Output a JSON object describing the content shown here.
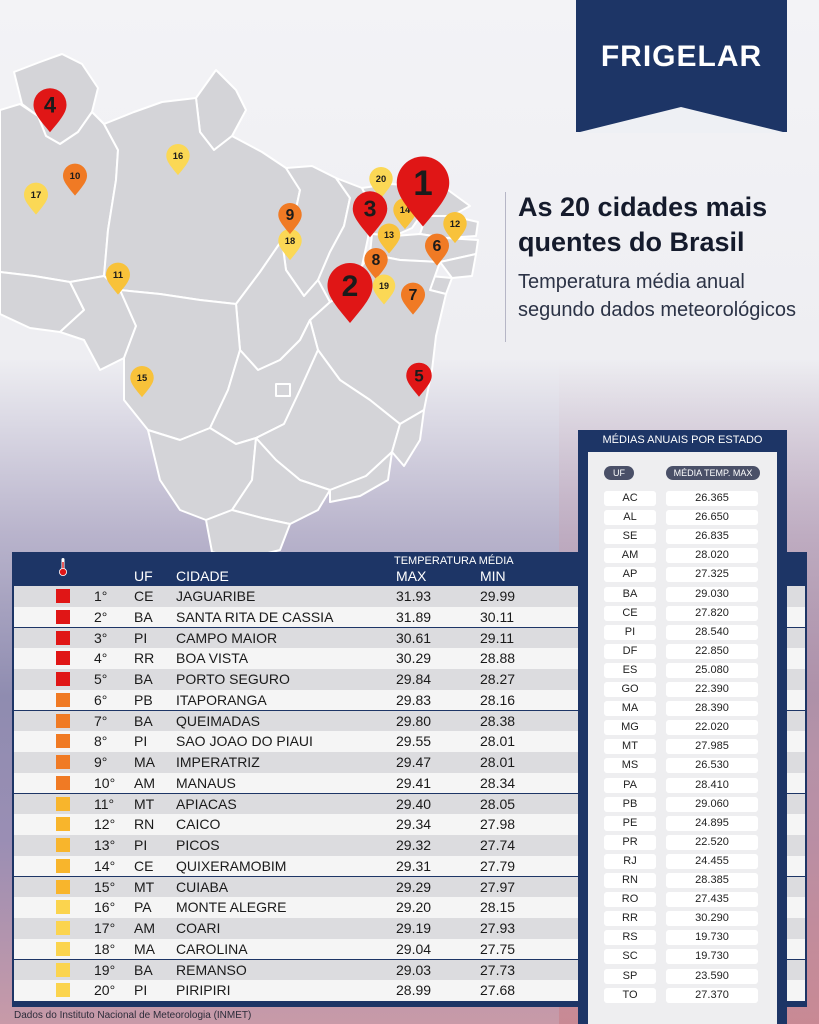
{
  "brand": {
    "logo_text": "FRIGELAR"
  },
  "headline": {
    "title": "As 20 cidades mais quentes do Brasil",
    "subtitle": "Temperatura média anual segundo dados meteorológicos"
  },
  "map_pins": [
    {
      "rank": "1",
      "color": "#e01616"
    },
    {
      "rank": "2",
      "color": "#e01616"
    },
    {
      "rank": "3",
      "color": "#e01616"
    },
    {
      "rank": "4",
      "color": "#e01616"
    },
    {
      "rank": "5",
      "color": "#e01616"
    },
    {
      "rank": "6",
      "color": "#f07a24"
    },
    {
      "rank": "7",
      "color": "#f07a24"
    },
    {
      "rank": "8",
      "color": "#f07a24"
    },
    {
      "rank": "9",
      "color": "#f07a24"
    },
    {
      "rank": "10",
      "color": "#f07a24"
    },
    {
      "rank": "11",
      "color": "#f8c23a"
    },
    {
      "rank": "12",
      "color": "#f8c23a"
    },
    {
      "rank": "13",
      "color": "#f8c23a"
    },
    {
      "rank": "14",
      "color": "#f8c23a"
    },
    {
      "rank": "15",
      "color": "#f8c23a"
    },
    {
      "rank": "16",
      "color": "#fbd855"
    },
    {
      "rank": "17",
      "color": "#fbd855"
    },
    {
      "rank": "18",
      "color": "#fbd855"
    },
    {
      "rank": "19",
      "color": "#fbd855"
    },
    {
      "rank": "20",
      "color": "#fbd855"
    }
  ],
  "table": {
    "header": {
      "uf": "UF",
      "cidade": "CIDADE",
      "temp_group": "TEMPERATURA MÉDIA",
      "max": "MAX",
      "min": "MIN"
    },
    "rows": [
      {
        "pos": "1°",
        "uf": "CE",
        "cidade": "JAGUARIBE",
        "max": "31.93",
        "min": "29.99",
        "color": "#e01616"
      },
      {
        "pos": "2°",
        "uf": "BA",
        "cidade": "SANTA RITA DE CASSIA",
        "max": "31.89",
        "min": "30.11",
        "color": "#e01616"
      },
      {
        "pos": "3°",
        "uf": "PI",
        "cidade": "CAMPO MAIOR",
        "max": "30.61",
        "min": "29.11",
        "color": "#e01616"
      },
      {
        "pos": "4°",
        "uf": "RR",
        "cidade": "BOA VISTA",
        "max": "30.29",
        "min": "28.88",
        "color": "#e01616"
      },
      {
        "pos": "5°",
        "uf": "BA",
        "cidade": "PORTO SEGURO",
        "max": "29.84",
        "min": "28.27",
        "color": "#e01616"
      },
      {
        "pos": "6°",
        "uf": "PB",
        "cidade": "ITAPORANGA",
        "max": "29.83",
        "min": "28.16",
        "color": "#f07a24"
      },
      {
        "pos": "7°",
        "uf": "BA",
        "cidade": "QUEIMADAS",
        "max": "29.80",
        "min": "28.38",
        "color": "#f07a24"
      },
      {
        "pos": "8°",
        "uf": "PI",
        "cidade": "SAO JOAO DO PIAUI",
        "max": "29.55",
        "min": "28.01",
        "color": "#f07a24"
      },
      {
        "pos": "9°",
        "uf": "MA",
        "cidade": "IMPERATRIZ",
        "max": "29.47",
        "min": "28.01",
        "color": "#f07a24"
      },
      {
        "pos": "10°",
        "uf": "AM",
        "cidade": "MANAUS",
        "max": "29.41",
        "min": "28.34",
        "color": "#f07a24"
      },
      {
        "pos": "11°",
        "uf": "MT",
        "cidade": "APIACAS",
        "max": "29.40",
        "min": "28.05",
        "color": "#f8b52c"
      },
      {
        "pos": "12°",
        "uf": "RN",
        "cidade": "CAICO",
        "max": "29.34",
        "min": "27.98",
        "color": "#f8b52c"
      },
      {
        "pos": "13°",
        "uf": "PI",
        "cidade": "PICOS",
        "max": "29.32",
        "min": "27.74",
        "color": "#f8b52c"
      },
      {
        "pos": "14°",
        "uf": "CE",
        "cidade": "QUIXERAMOBIM",
        "max": "29.31",
        "min": "27.79",
        "color": "#f8b52c"
      },
      {
        "pos": "15°",
        "uf": "MT",
        "cidade": "CUIABA",
        "max": "29.29",
        "min": "27.97",
        "color": "#f8b52c"
      },
      {
        "pos": "16°",
        "uf": "PA",
        "cidade": "MONTE ALEGRE",
        "max": "29.20",
        "min": "28.15",
        "color": "#fbd44e"
      },
      {
        "pos": "17°",
        "uf": "AM",
        "cidade": "COARI",
        "max": "29.19",
        "min": "27.93",
        "color": "#fbd44e"
      },
      {
        "pos": "18°",
        "uf": "MA",
        "cidade": "CAROLINA",
        "max": "29.04",
        "min": "27.75",
        "color": "#fbd44e"
      },
      {
        "pos": "19°",
        "uf": "BA",
        "cidade": "REMANSO",
        "max": "29.03",
        "min": "27.73",
        "color": "#fbd44e"
      },
      {
        "pos": "20°",
        "uf": "PI",
        "cidade": "PIRIPIRI",
        "max": "28.99",
        "min": "27.68",
        "color": "#fbd44e"
      }
    ]
  },
  "states": {
    "title": "MÉDIAS ANUAIS POR ESTADO",
    "uf_header": "UF",
    "value_header": "MÉDIA TEMP. MAX",
    "rows": [
      {
        "uf": "AC",
        "value": "26.365"
      },
      {
        "uf": "AL",
        "value": "26.650"
      },
      {
        "uf": "SE",
        "value": "26.835"
      },
      {
        "uf": "AM",
        "value": "28.020"
      },
      {
        "uf": "AP",
        "value": "27.325"
      },
      {
        "uf": "BA",
        "value": "29.030"
      },
      {
        "uf": "CE",
        "value": "27.820"
      },
      {
        "uf": "PI",
        "value": "28.540"
      },
      {
        "uf": "DF",
        "value": "22.850"
      },
      {
        "uf": "ES",
        "value": "25.080"
      },
      {
        "uf": "GO",
        "value": "22.390"
      },
      {
        "uf": "MA",
        "value": "28.390"
      },
      {
        "uf": "MG",
        "value": "22.020"
      },
      {
        "uf": "MT",
        "value": "27.985"
      },
      {
        "uf": "MS",
        "value": "26.530"
      },
      {
        "uf": "PA",
        "value": "28.410"
      },
      {
        "uf": "PB",
        "value": "29.060"
      },
      {
        "uf": "PE",
        "value": "24.895"
      },
      {
        "uf": "PR",
        "value": "22.520"
      },
      {
        "uf": "RJ",
        "value": "24.455"
      },
      {
        "uf": "RN",
        "value": "28.385"
      },
      {
        "uf": "RO",
        "value": "27.435"
      },
      {
        "uf": "RR",
        "value": "30.290"
      },
      {
        "uf": "RS",
        "value": "19.730"
      },
      {
        "uf": "SC",
        "value": "19.730"
      },
      {
        "uf": "SP",
        "value": "23.590"
      },
      {
        "uf": "TO",
        "value": "27.370"
      }
    ]
  },
  "source": "Dados do Instituto Nacional de Meteorologia (INMET)"
}
